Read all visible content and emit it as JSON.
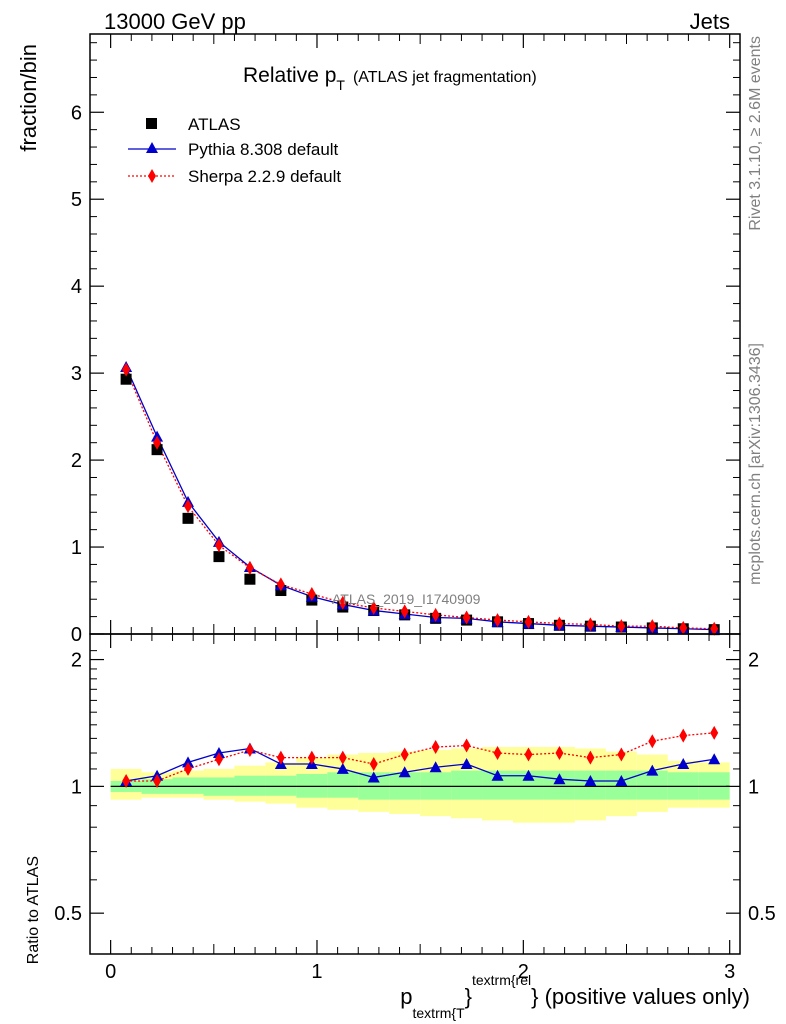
{
  "header": {
    "left": "13000 GeV pp",
    "right": "Jets"
  },
  "side_labels": {
    "rivet": "Rivet 3.1.10, ≥ 2.6M events",
    "mcplots": "mcplots.cern.ch [arXiv:1306.3436]"
  },
  "colors": {
    "pythia": "#0000cc",
    "sherpa": "#ff0000",
    "atlas": "#000000",
    "band_inner": "#99ff99",
    "band_outer": "#ffff99"
  },
  "chart_data": [
    {
      "type": "scatter",
      "title": "Relative p_T (ATLAS jet fragmentation)",
      "title_main": "Relative p",
      "title_sub": "T",
      "title_note": "(ATLAS jet fragmentation)",
      "ylabel": "fraction/bin",
      "analysis_label": "ATLAS_2019_I1740909",
      "xlim": [
        -0.1,
        3.05
      ],
      "ylim": [
        0,
        6.9
      ],
      "yticks": [
        0,
        1,
        2,
        3,
        4,
        5,
        6
      ],
      "legend_position": "top-left",
      "x": [
        0.075,
        0.225,
        0.375,
        0.525,
        0.675,
        0.825,
        0.975,
        1.125,
        1.275,
        1.425,
        1.575,
        1.725,
        1.875,
        2.025,
        2.175,
        2.325,
        2.475,
        2.625,
        2.775,
        2.925
      ],
      "series": [
        {
          "name": "ATLAS",
          "marker": "square",
          "line": "none",
          "values": [
            2.93,
            2.12,
            1.33,
            0.89,
            0.63,
            0.5,
            0.39,
            0.31,
            0.27,
            0.22,
            0.18,
            0.16,
            0.14,
            0.12,
            0.1,
            0.09,
            0.08,
            0.07,
            0.06,
            0.05
          ]
        },
        {
          "name": "Pythia 8.308 default",
          "marker": "triangle",
          "line": "solid",
          "values": [
            3.07,
            2.27,
            1.52,
            1.06,
            0.77,
            0.56,
            0.43,
            0.34,
            0.27,
            0.23,
            0.19,
            0.18,
            0.14,
            0.12,
            0.1,
            0.09,
            0.08,
            0.07,
            0.06,
            0.05
          ]
        },
        {
          "name": "Sherpa 2.2.9 default",
          "marker": "diamond",
          "line": "dotted",
          "values": [
            3.04,
            2.2,
            1.47,
            1.02,
            0.76,
            0.57,
            0.46,
            0.36,
            0.3,
            0.26,
            0.22,
            0.19,
            0.16,
            0.14,
            0.12,
            0.11,
            0.09,
            0.09,
            0.07,
            0.06
          ]
        }
      ]
    },
    {
      "type": "line",
      "ylabel": "Ratio to ATLAS",
      "xlabel": "p_textrm{T}^textrm{rel} (positive values only)",
      "xlabel_main": "p",
      "xlabel_sub": "textrm{T",
      "xlabel_close": "}",
      "xlabel_sup": "textrm{rel",
      "xlabel_tail": "} (positive values only)",
      "xlim": [
        -0.1,
        3.05
      ],
      "ylim": [
        0.4,
        2.3
      ],
      "yscale": "log",
      "yticks": [
        0.5,
        1,
        2
      ],
      "yticklabels": [
        "0.5",
        "1",
        "2"
      ],
      "xticks": [
        0,
        1,
        2,
        3
      ],
      "xticklabels": [
        "0",
        "1",
        "2",
        "3"
      ],
      "reference_line": 1,
      "bin_edges": [
        0,
        0.15,
        0.3,
        0.45,
        0.6,
        0.75,
        0.9,
        1.05,
        1.2,
        1.35,
        1.5,
        1.65,
        1.8,
        1.95,
        2.1,
        2.25,
        2.4,
        2.55,
        2.7,
        2.85,
        3.0
      ],
      "band_inner_lo": [
        0.97,
        0.96,
        0.96,
        0.95,
        0.95,
        0.95,
        0.94,
        0.94,
        0.93,
        0.93,
        0.93,
        0.93,
        0.93,
        0.93,
        0.93,
        0.93,
        0.93,
        0.93,
        0.93,
        0.93
      ],
      "band_inner_hi": [
        1.03,
        1.04,
        1.05,
        1.05,
        1.06,
        1.06,
        1.07,
        1.08,
        1.08,
        1.08,
        1.08,
        1.09,
        1.09,
        1.09,
        1.09,
        1.09,
        1.09,
        1.09,
        1.08,
        1.08
      ],
      "band_outer_lo": [
        0.93,
        0.94,
        0.94,
        0.93,
        0.92,
        0.91,
        0.89,
        0.88,
        0.87,
        0.86,
        0.85,
        0.84,
        0.83,
        0.82,
        0.82,
        0.83,
        0.85,
        0.87,
        0.89,
        0.89
      ],
      "band_outer_hi": [
        1.1,
        1.08,
        1.09,
        1.1,
        1.12,
        1.14,
        1.17,
        1.19,
        1.2,
        1.21,
        1.22,
        1.23,
        1.24,
        1.24,
        1.24,
        1.23,
        1.21,
        1.19,
        1.15,
        1.14
      ],
      "x": [
        0.075,
        0.225,
        0.375,
        0.525,
        0.675,
        0.825,
        0.975,
        1.125,
        1.275,
        1.425,
        1.575,
        1.725,
        1.875,
        2.025,
        2.175,
        2.325,
        2.475,
        2.625,
        2.775,
        2.925
      ],
      "series": [
        {
          "name": "Pythia 8.308 default",
          "marker": "triangle",
          "line": "solid",
          "values": [
            1.03,
            1.06,
            1.14,
            1.2,
            1.23,
            1.13,
            1.13,
            1.1,
            1.05,
            1.08,
            1.11,
            1.13,
            1.06,
            1.06,
            1.04,
            1.03,
            1.03,
            1.09,
            1.13,
            1.16
          ]
        },
        {
          "name": "Sherpa 2.2.9 default",
          "marker": "diamond",
          "line": "dotted",
          "values": [
            1.03,
            1.03,
            1.1,
            1.16,
            1.22,
            1.17,
            1.17,
            1.17,
            1.13,
            1.19,
            1.24,
            1.25,
            1.2,
            1.19,
            1.2,
            1.17,
            1.19,
            1.28,
            1.32,
            1.34
          ]
        }
      ]
    }
  ]
}
